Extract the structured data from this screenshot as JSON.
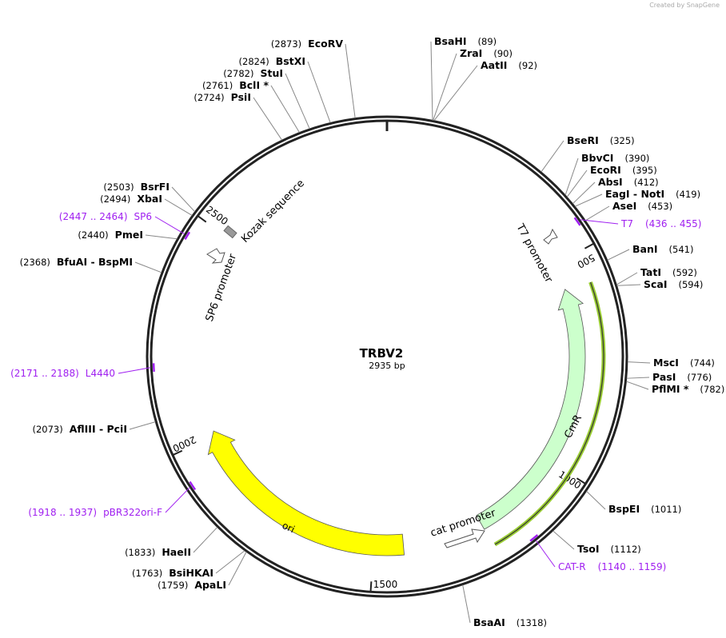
{
  "credit": "Created by SnapGene",
  "plasmid": {
    "name": "TRBV2",
    "length_label": "2935 bp",
    "length": 2935
  },
  "ticks": [
    {
      "bp": 500,
      "label": "500"
    },
    {
      "bp": 1000,
      "label": "1000"
    },
    {
      "bp": 1500,
      "label": "1500"
    },
    {
      "bp": 2000,
      "label": "2000"
    },
    {
      "bp": 2500,
      "label": "2500"
    }
  ],
  "enzymes": [
    {
      "name": "BsaHI",
      "pos": 89,
      "pos_label": "(89)"
    },
    {
      "name": "ZraI",
      "pos": 90,
      "pos_label": "(90)"
    },
    {
      "name": "AatII",
      "pos": 92,
      "pos_label": "(92)"
    },
    {
      "name": "BseRI",
      "pos": 325,
      "pos_label": "(325)"
    },
    {
      "name": "BbvCI",
      "pos": 390,
      "pos_label": "(390)"
    },
    {
      "name": "EcoRI",
      "pos": 395,
      "pos_label": "(395)"
    },
    {
      "name": "AbsI",
      "pos": 412,
      "pos_label": "(412)"
    },
    {
      "name": "EagI  -  NotI",
      "pos": 419,
      "pos_label": "(419)"
    },
    {
      "name": "AseI",
      "pos": 453,
      "pos_label": "(453)"
    },
    {
      "name": "BanI",
      "pos": 541,
      "pos_label": "(541)"
    },
    {
      "name": "TatI",
      "pos": 592,
      "pos_label": "(592)"
    },
    {
      "name": "ScaI",
      "pos": 594,
      "pos_label": "(594)"
    },
    {
      "name": "MscI",
      "pos": 744,
      "pos_label": "(744)"
    },
    {
      "name": "PasI",
      "pos": 776,
      "pos_label": "(776)"
    },
    {
      "name": "PflMI *",
      "pos": 782,
      "pos_label": "(782)"
    },
    {
      "name": "BspEI",
      "pos": 1011,
      "pos_label": "(1011)"
    },
    {
      "name": "TsoI",
      "pos": 1112,
      "pos_label": "(1112)"
    },
    {
      "name": "BsaAI",
      "pos": 1318,
      "pos_label": "(1318)"
    },
    {
      "name": "ApaLI",
      "pos": 1759,
      "pos_label": "(1759)"
    },
    {
      "name": "BsiHKAI",
      "pos": 1763,
      "pos_label": "(1763)"
    },
    {
      "name": "HaeII",
      "pos": 1833,
      "pos_label": "(1833)"
    },
    {
      "name": "AflIII  -  PciI",
      "pos": 2073,
      "pos_label": "(2073)"
    },
    {
      "name": "BfuAI  -  BspMI",
      "pos": 2368,
      "pos_label": "(2368)"
    },
    {
      "name": "PmeI",
      "pos": 2440,
      "pos_label": "(2440)"
    },
    {
      "name": "XbaI",
      "pos": 2494,
      "pos_label": "(2494)"
    },
    {
      "name": "BsrFI",
      "pos": 2503,
      "pos_label": "(2503)"
    },
    {
      "name": "PsiI",
      "pos": 2724,
      "pos_label": "(2724)"
    },
    {
      "name": "BclI *",
      "pos": 2761,
      "pos_label": "(2761)"
    },
    {
      "name": "StuI",
      "pos": 2782,
      "pos_label": "(2782)"
    },
    {
      "name": "BstXI",
      "pos": 2824,
      "pos_label": "(2824)"
    },
    {
      "name": "EcoRV",
      "pos": 2873,
      "pos_label": "(2873)"
    }
  ],
  "primers": [
    {
      "name": "T7",
      "start": 436,
      "end": 455,
      "range_label": "(436 .. 455)"
    },
    {
      "name": "CAT-R",
      "start": 1140,
      "end": 1159,
      "range_label": "(1140 .. 1159)"
    },
    {
      "name": "pBR322ori-F",
      "start": 1918,
      "end": 1937,
      "range_label": "(1918 .. 1937)"
    },
    {
      "name": "L4440",
      "start": 2171,
      "end": 2188,
      "range_label": "(2171 .. 2188)"
    },
    {
      "name": "SP6",
      "start": 2447,
      "end": 2464,
      "range_label": "(2447 .. 2464)"
    }
  ],
  "features": {
    "cmr": "CmR",
    "ori": "ori",
    "cat_promoter": "cat promoter",
    "t7_promoter": "T7 promoter",
    "sp6_promoter": "SP6 promoter",
    "kozak": "Kozak sequence"
  },
  "colors": {
    "cmr": "#ccffcc",
    "ori": "#ffff00",
    "primer": "#a020f0",
    "orf_line": "#99cc33"
  }
}
